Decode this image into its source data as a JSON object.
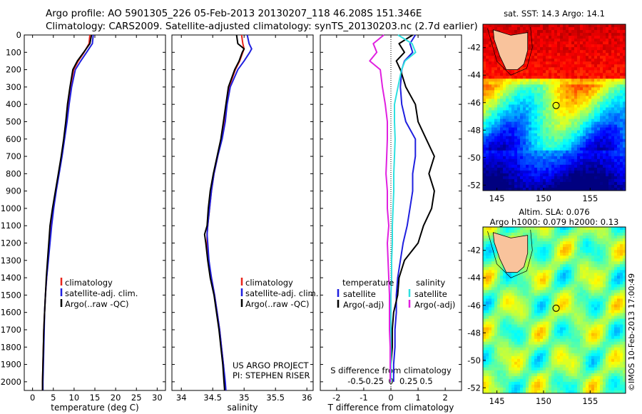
{
  "header": {
    "line1": "Argo profile: AO 5901305_226 05-Feb-2013 20130207_118 46.208S 151.346E",
    "line2": "Climatology: CARS2009. Satellite-adjusted climatology: synTS_20130203.nc (2.7d earlier)"
  },
  "credits": {
    "project": "US ARGO PROJECT",
    "pi": "PI: STEPHEN RISER",
    "imos_stamp": "©IMOS 10-Feb-2013 17:00:49"
  },
  "colors": {
    "climatology": "#e8251c",
    "satellite": "#1f1fdf",
    "argo": "#000000",
    "sat_sal": "#2fe0e0",
    "argo_sal": "#e020e0"
  },
  "chart_data": [
    {
      "type": "line",
      "title": "",
      "xlabel": "temperature (deg C)",
      "ylabel": "",
      "xlim": [
        -2,
        32
      ],
      "ylim": [
        2050,
        0
      ],
      "x_ticks": [
        0,
        5,
        10,
        15,
        20,
        25,
        30
      ],
      "y_ticks": [
        0,
        100,
        200,
        300,
        400,
        500,
        600,
        700,
        800,
        900,
        1000,
        1100,
        1200,
        1300,
        1400,
        1500,
        1600,
        1700,
        1800,
        1900,
        2000
      ],
      "legend": [
        "climatology",
        "satellite-adj. clim.",
        "Argo(..raw -QC)"
      ],
      "legend_position": "lower-right",
      "depth": [
        0,
        50,
        100,
        150,
        200,
        300,
        400,
        500,
        600,
        700,
        800,
        900,
        1000,
        1100,
        1200,
        1300,
        1400,
        1500,
        1600,
        1700,
        1800,
        1900,
        2000,
        2050
      ],
      "series": [
        {
          "name": "climatology",
          "values": [
            13.8,
            13.6,
            12.4,
            11.0,
            9.9,
            9.1,
            8.6,
            8.1,
            7.6,
            7.0,
            6.3,
            5.6,
            5.0,
            4.5,
            4.1,
            3.7,
            3.4,
            3.1,
            2.9,
            2.7,
            2.6,
            2.5,
            2.4,
            2.4
          ]
        },
        {
          "name": "satellite-adj. clim.",
          "values": [
            14.6,
            14.4,
            13.0,
            11.6,
            10.3,
            9.4,
            8.8,
            8.3,
            7.7,
            7.1,
            6.4,
            5.7,
            5.1,
            4.6,
            4.2,
            3.8,
            3.4,
            3.1,
            2.9,
            2.8,
            2.7,
            2.6,
            2.5,
            2.5
          ]
        },
        {
          "name": "Argo(..raw -QC)",
          "values": [
            14.2,
            13.8,
            12.3,
            10.8,
            9.7,
            9.0,
            8.4,
            8.0,
            7.5,
            6.9,
            6.2,
            5.5,
            4.8,
            4.2,
            3.9,
            3.6,
            3.3,
            3.1,
            2.9,
            2.7,
            2.6,
            2.5,
            2.4,
            2.4
          ]
        }
      ]
    },
    {
      "type": "line",
      "title": "",
      "xlabel": "salinity",
      "ylabel": "",
      "xlim": [
        33.85,
        36.1
      ],
      "ylim": [
        2050,
        0
      ],
      "x_ticks": [
        34,
        34.5,
        35,
        35.5,
        36
      ],
      "legend": [
        "climatology",
        "satellite-adj. clim.",
        "Argo(..raw -QC)"
      ],
      "legend_position": "lower-right",
      "depth": [
        0,
        50,
        80,
        100,
        150,
        200,
        300,
        400,
        500,
        600,
        700,
        800,
        900,
        1000,
        1100,
        1150,
        1200,
        1300,
        1400,
        1500,
        1600,
        1700,
        1800,
        1900,
        2000,
        2050
      ],
      "series": [
        {
          "name": "climatology",
          "values": [
            34.96,
            34.98,
            35.0,
            34.98,
            34.93,
            34.86,
            34.76,
            34.72,
            34.69,
            34.64,
            34.58,
            34.52,
            34.48,
            34.45,
            34.42,
            34.41,
            34.41,
            34.43,
            34.48,
            34.53,
            34.57,
            34.61,
            34.64,
            34.67,
            34.69,
            34.7
          ]
        },
        {
          "name": "satellite-adj. clim.",
          "values": [
            35.05,
            35.08,
            35.12,
            35.09,
            35.0,
            34.9,
            34.78,
            34.73,
            34.7,
            34.65,
            34.58,
            34.52,
            34.48,
            34.45,
            34.42,
            34.41,
            34.42,
            34.44,
            34.48,
            34.53,
            34.57,
            34.61,
            34.64,
            34.67,
            34.7,
            34.71
          ]
        },
        {
          "name": "Argo(..raw -QC)",
          "values": [
            34.88,
            34.9,
            35.0,
            34.97,
            34.92,
            34.85,
            34.75,
            34.71,
            34.67,
            34.63,
            34.57,
            34.51,
            34.46,
            34.43,
            34.41,
            34.37,
            34.39,
            34.42,
            34.46,
            34.52,
            34.56,
            34.6,
            34.63,
            34.66,
            34.68,
            34.69
          ]
        }
      ]
    },
    {
      "type": "line",
      "title": "",
      "xlabel": "T difference from climatology",
      "xlabel_secondary": "S difference from climatology",
      "ylabel": "",
      "xlim": [
        -2.6,
        2.6
      ],
      "ylim": [
        2050,
        0
      ],
      "x_ticks": [
        -2,
        -1,
        0,
        1,
        2
      ],
      "x_tick_labels": [
        "-2",
        "-1",
        "0",
        "1",
        "2"
      ],
      "x2_ticks": [
        -0.5,
        -0.25,
        0,
        0.25,
        0.5
      ],
      "x2_tick_labels": [
        "-0.5",
        "-0.25",
        "0",
        "0.25",
        "0.5"
      ],
      "legend_headers": [
        "temperature",
        "salinity"
      ],
      "legend": [
        "satellite",
        "Argo(-adj)",
        "satellite",
        "Argo(-adj)"
      ],
      "legend_position": "lower-right",
      "depth": [
        0,
        50,
        100,
        150,
        200,
        300,
        400,
        500,
        600,
        700,
        800,
        900,
        1000,
        1100,
        1200,
        1300,
        1400,
        1500,
        1600,
        1700,
        1800,
        1900,
        2000
      ],
      "series": [
        {
          "name": "temperature satellite",
          "values": [
            0.9,
            0.7,
            0.8,
            0.5,
            0.4,
            0.35,
            0.4,
            0.55,
            0.9,
            0.9,
            0.8,
            0.8,
            0.7,
            0.6,
            0.45,
            0.35,
            0.25,
            0.2,
            0.2,
            0.15,
            0.15,
            0.1,
            0.1
          ]
        },
        {
          "name": "temperature Argo(-adj)",
          "values": [
            0.8,
            0.3,
            0.5,
            0.2,
            0.35,
            0.55,
            0.9,
            1.0,
            1.3,
            1.6,
            1.4,
            1.6,
            1.5,
            1.2,
            1.0,
            0.5,
            0.3,
            0.25,
            0.1,
            0.05,
            0.05,
            0.0,
            0.0
          ]
        },
        {
          "name": "salinity satellite",
          "values": [
            0.1,
            0.3,
            0.35,
            0.2,
            0.15,
            0.1,
            0.05,
            0.05,
            0.06,
            0.05,
            0.04,
            0.04,
            0.03,
            0.02,
            0.02,
            0.01,
            0.01,
            0.0,
            0.0,
            0.0,
            0.0,
            0.0,
            0.0
          ]
        },
        {
          "name": "salinity Argo(-adj)",
          "values": [
            -0.1,
            -0.25,
            -0.2,
            -0.3,
            -0.15,
            -0.12,
            -0.08,
            -0.05,
            -0.05,
            -0.06,
            -0.07,
            -0.05,
            -0.05,
            -0.03,
            -0.05,
            -0.04,
            -0.03,
            -0.02,
            -0.02,
            -0.02,
            -0.01,
            -0.01,
            -0.01
          ]
        }
      ]
    },
    {
      "type": "heatmap",
      "title": "sat. SST: 14.3  Argo: 14.1",
      "xlim": [
        143.5,
        158.8
      ],
      "ylim": [
        -52.4,
        -40.3
      ],
      "x_ticks": [
        145,
        150,
        155
      ],
      "y_ticks": [
        -42,
        -44,
        -46,
        -48,
        -50,
        -52
      ],
      "argo_position": [
        151.346,
        -46.208
      ]
    },
    {
      "type": "heatmap",
      "title": "Altim. SLA: 0.076",
      "subtitle": "Argo h1000: 0.079  h2000: 0.13",
      "xlim": [
        143.5,
        158.8
      ],
      "ylim": [
        -52.4,
        -40.3
      ],
      "x_ticks": [
        145,
        150,
        155
      ],
      "y_ticks": [
        -42,
        -44,
        -46,
        -48,
        -50,
        -52
      ],
      "argo_position": [
        151.346,
        -46.208
      ]
    }
  ]
}
